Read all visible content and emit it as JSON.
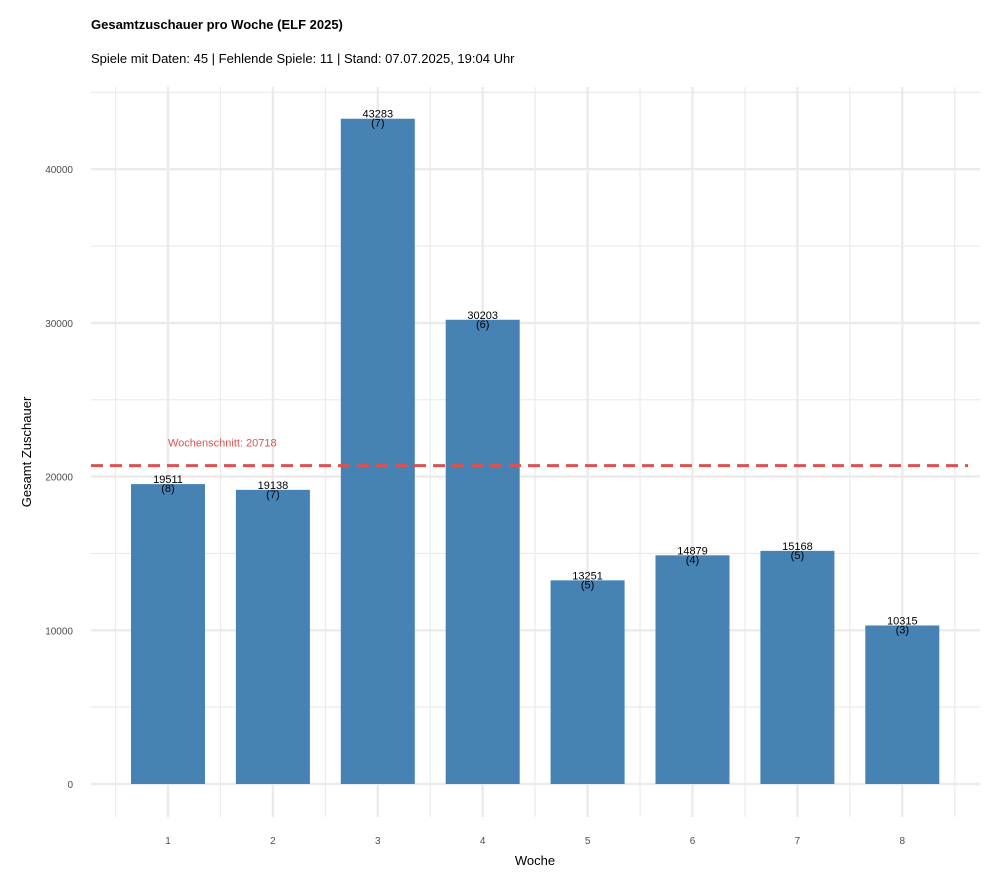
{
  "chart_data": {
    "type": "bar",
    "title": "Gesamtzuschauer pro Woche (ELF 2025)",
    "subtitle": "Spiele mit Daten: 45 | Fehlende Spiele: 11 | Stand: 07.07.2025, 19:04 Uhr",
    "xlabel": "Woche",
    "ylabel": "Gesamt Zuschauer",
    "categories": [
      "1",
      "2",
      "3",
      "4",
      "5",
      "6",
      "7",
      "8"
    ],
    "values": [
      19511,
      19138,
      43283,
      30203,
      13251,
      14879,
      15168,
      10315
    ],
    "games": [
      "(8)",
      "(7)",
      "(7)",
      "(6)",
      "(5)",
      "(4)",
      "(5)",
      "(3)"
    ],
    "y_ticks": [
      0,
      10000,
      20000,
      30000,
      40000
    ],
    "ylim": [
      0,
      45000
    ],
    "average": {
      "value": 20718,
      "label": "Wochenschnitt: 20718",
      "color": "#d9534f"
    },
    "bar_color": "#4682b4",
    "grid": true,
    "legend": "none"
  }
}
